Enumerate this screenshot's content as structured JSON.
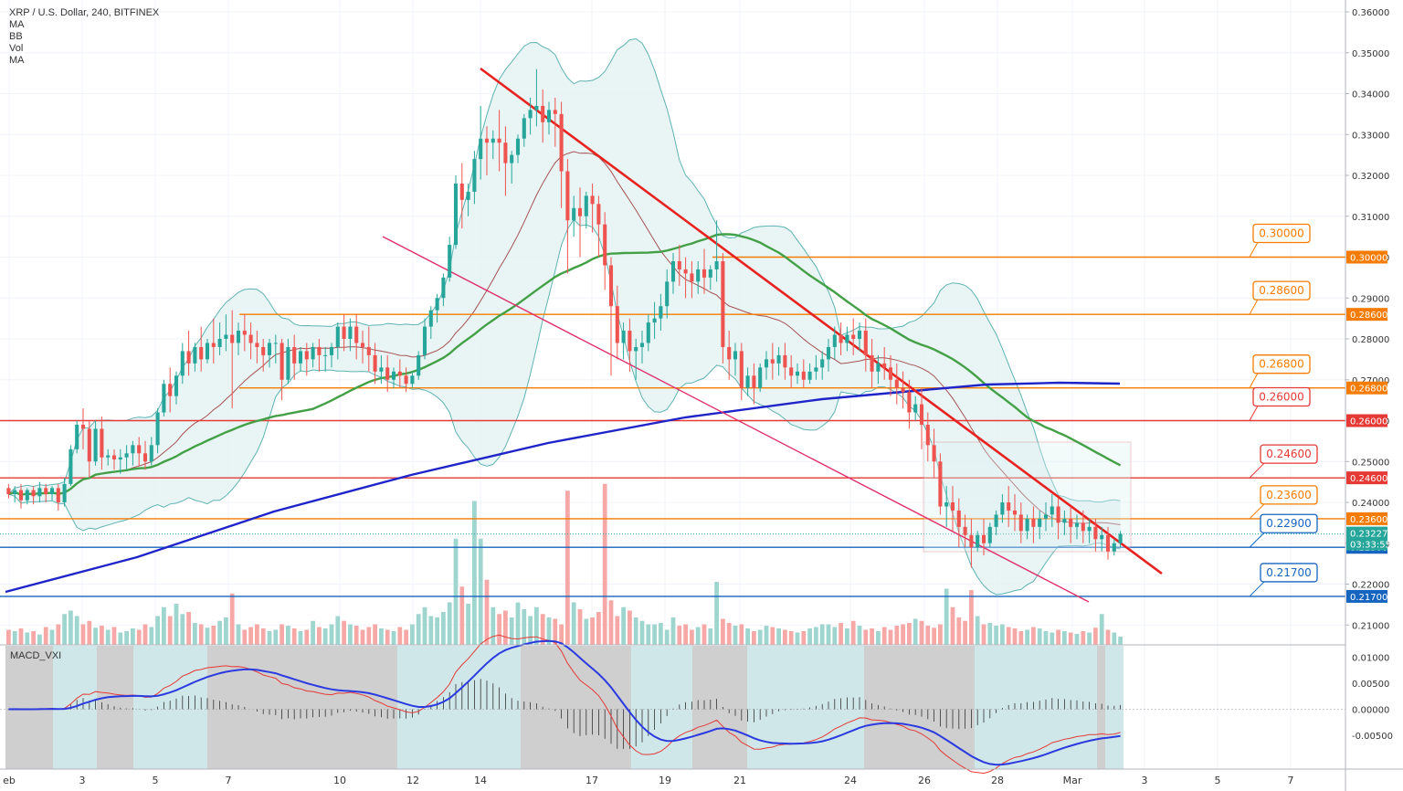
{
  "header": {
    "symbol_line": "XRP / U.S. Dollar, 240, BITFINEX",
    "indicators": [
      "MA",
      "BB",
      "Vol",
      "MA"
    ]
  },
  "macd": {
    "label": "MACD_VXI",
    "ticks": [
      "0.01000",
      "0.00500",
      "0.00000",
      "-0.00500"
    ]
  },
  "colors": {
    "up": "#26a69a",
    "down": "#ef5350",
    "orange_line": "#f57c00",
    "red_line": "#e53935",
    "blue_line": "#1565c0",
    "ma_green": "#43a047",
    "ma_blue": "#1e24c8",
    "bb": "#5fb3b3",
    "trend_red": "#e8221f",
    "trend_pink": "#e0306a"
  },
  "chart_data": {
    "type": "candlestick",
    "title": "XRP / U.S. Dollar, 240, BITFINEX",
    "ylim": [
      0.2055,
      0.3615
    ],
    "y_ticks": [
      "0.36000",
      "0.35000",
      "0.34000",
      "0.33000",
      "0.32000",
      "0.31000",
      "0.30000",
      "0.29000",
      "0.28000",
      "0.27000",
      "0.26000",
      "0.25000",
      "0.24000",
      "0.23000",
      "0.22000",
      "0.21000"
    ],
    "x_ticks": [
      "eb",
      "3",
      "5",
      "7",
      "10",
      "12",
      "14",
      "17",
      "19",
      "21",
      "24",
      "26",
      "28",
      "Mar",
      "3",
      "5",
      "7"
    ],
    "levels": [
      {
        "value": 0.3,
        "label": "0.30000",
        "style": "orange",
        "callout": "0.30000"
      },
      {
        "value": 0.286,
        "label": "0.28600",
        "style": "orange",
        "callout": "0.28600"
      },
      {
        "value": 0.268,
        "label": "0.26800",
        "style": "orange",
        "callout": "0.26800"
      },
      {
        "value": 0.26,
        "label": "0.26000",
        "style": "red",
        "callout": "0.26000"
      },
      {
        "value": 0.246,
        "label": "0.24600",
        "style": "red",
        "callout": "0.24600"
      },
      {
        "value": 0.236,
        "label": "0.23600",
        "style": "orange",
        "callout": "0.23600"
      },
      {
        "value": 0.229,
        "label": "0.22900",
        "style": "blue",
        "callout": "0.22900"
      },
      {
        "value": 0.217,
        "label": "0.21700",
        "style": "blue",
        "callout": "0.21700"
      }
    ],
    "last_price": {
      "value": 0.23227,
      "label": "0.23227",
      "countdown": "03:33:55"
    },
    "candles": [
      [
        0.2435,
        0.2445,
        0.242,
        0.241
      ],
      [
        0.242,
        0.244,
        0.243,
        0.24
      ],
      [
        0.243,
        0.2445,
        0.2405,
        0.2385
      ],
      [
        0.2405,
        0.2435,
        0.243,
        0.2395
      ],
      [
        0.243,
        0.244,
        0.2415,
        0.2395
      ],
      [
        0.2415,
        0.245,
        0.2435,
        0.24
      ],
      [
        0.2435,
        0.2445,
        0.242,
        0.24
      ],
      [
        0.242,
        0.244,
        0.2435,
        0.2405
      ],
      [
        0.2435,
        0.2445,
        0.24,
        0.238
      ],
      [
        0.24,
        0.246,
        0.2445,
        0.239
      ],
      [
        0.2445,
        0.254,
        0.253,
        0.244
      ],
      [
        0.253,
        0.26,
        0.259,
        0.252
      ],
      [
        0.259,
        0.263,
        0.258,
        0.253
      ],
      [
        0.258,
        0.26,
        0.25,
        0.246
      ],
      [
        0.25,
        0.26,
        0.258,
        0.249
      ],
      [
        0.258,
        0.261,
        0.251,
        0.248
      ],
      [
        0.251,
        0.253,
        0.2515,
        0.249
      ],
      [
        0.2515,
        0.253,
        0.2505,
        0.248
      ],
      [
        0.2505,
        0.253,
        0.251,
        0.247
      ],
      [
        0.251,
        0.254,
        0.252,
        0.248
      ],
      [
        0.252,
        0.255,
        0.254,
        0.249
      ],
      [
        0.254,
        0.256,
        0.252,
        0.249
      ],
      [
        0.252,
        0.255,
        0.25,
        0.248
      ],
      [
        0.25,
        0.256,
        0.254,
        0.249
      ],
      [
        0.254,
        0.263,
        0.262,
        0.252
      ],
      [
        0.262,
        0.27,
        0.269,
        0.261
      ],
      [
        0.269,
        0.273,
        0.266,
        0.262
      ],
      [
        0.266,
        0.272,
        0.271,
        0.264
      ],
      [
        0.271,
        0.279,
        0.277,
        0.269
      ],
      [
        0.277,
        0.282,
        0.274,
        0.271
      ],
      [
        0.274,
        0.279,
        0.278,
        0.272
      ],
      [
        0.278,
        0.283,
        0.275,
        0.272
      ],
      [
        0.275,
        0.28,
        0.279,
        0.274
      ],
      [
        0.279,
        0.285,
        0.278,
        0.274
      ],
      [
        0.278,
        0.284,
        0.28,
        0.276
      ],
      [
        0.28,
        0.286,
        0.281,
        0.277
      ],
      [
        0.281,
        0.287,
        0.279,
        0.263
      ],
      [
        0.279,
        0.284,
        0.282,
        0.276
      ],
      [
        0.282,
        0.286,
        0.281,
        0.277
      ],
      [
        0.281,
        0.284,
        0.279,
        0.275
      ],
      [
        0.279,
        0.282,
        0.278,
        0.274
      ],
      [
        0.278,
        0.28,
        0.276,
        0.272
      ],
      [
        0.276,
        0.28,
        0.279,
        0.273
      ],
      [
        0.279,
        0.281,
        0.279,
        0.274
      ],
      [
        0.279,
        0.28,
        0.27,
        0.265
      ],
      [
        0.27,
        0.28,
        0.278,
        0.269
      ],
      [
        0.278,
        0.281,
        0.274,
        0.27
      ],
      [
        0.274,
        0.278,
        0.277,
        0.272
      ],
      [
        0.277,
        0.279,
        0.275,
        0.271
      ],
      [
        0.275,
        0.279,
        0.278,
        0.273
      ],
      [
        0.278,
        0.28,
        0.276,
        0.272
      ],
      [
        0.276,
        0.278,
        0.276,
        0.272
      ],
      [
        0.276,
        0.279,
        0.278,
        0.273
      ],
      [
        0.278,
        0.284,
        0.283,
        0.275
      ],
      [
        0.283,
        0.286,
        0.28,
        0.277
      ],
      [
        0.28,
        0.285,
        0.283,
        0.277
      ],
      [
        0.283,
        0.286,
        0.279,
        0.275
      ],
      [
        0.279,
        0.282,
        0.278,
        0.274
      ],
      [
        0.278,
        0.283,
        0.276,
        0.272
      ],
      [
        0.276,
        0.279,
        0.272,
        0.269
      ],
      [
        0.272,
        0.276,
        0.273,
        0.269
      ],
      [
        0.273,
        0.276,
        0.27,
        0.267
      ],
      [
        0.27,
        0.273,
        0.272,
        0.268
      ],
      [
        0.272,
        0.275,
        0.271,
        0.268
      ],
      [
        0.271,
        0.273,
        0.269,
        0.267
      ],
      [
        0.269,
        0.272,
        0.271,
        0.268
      ],
      [
        0.271,
        0.277,
        0.276,
        0.27
      ],
      [
        0.276,
        0.285,
        0.283,
        0.275
      ],
      [
        0.283,
        0.288,
        0.287,
        0.28
      ],
      [
        0.287,
        0.291,
        0.29,
        0.284
      ],
      [
        0.29,
        0.296,
        0.295,
        0.288
      ],
      [
        0.295,
        0.305,
        0.303,
        0.294
      ],
      [
        0.303,
        0.32,
        0.318,
        0.302
      ],
      [
        0.318,
        0.323,
        0.314,
        0.307
      ],
      [
        0.314,
        0.318,
        0.316,
        0.31
      ],
      [
        0.316,
        0.326,
        0.324,
        0.313
      ],
      [
        0.324,
        0.337,
        0.329,
        0.319
      ],
      [
        0.329,
        0.332,
        0.328,
        0.32
      ],
      [
        0.328,
        0.331,
        0.329,
        0.324
      ],
      [
        0.329,
        0.336,
        0.328,
        0.321
      ],
      [
        0.328,
        0.332,
        0.323,
        0.315
      ],
      [
        0.323,
        0.326,
        0.325,
        0.318
      ],
      [
        0.325,
        0.33,
        0.329,
        0.323
      ],
      [
        0.329,
        0.335,
        0.334,
        0.327
      ],
      [
        0.334,
        0.339,
        0.336,
        0.33
      ],
      [
        0.336,
        0.346,
        0.337,
        0.332
      ],
      [
        0.337,
        0.341,
        0.333,
        0.328
      ],
      [
        0.333,
        0.338,
        0.336,
        0.33
      ],
      [
        0.336,
        0.339,
        0.335,
        0.327
      ],
      [
        0.335,
        0.338,
        0.321,
        0.312
      ],
      [
        0.321,
        0.324,
        0.309,
        0.296
      ],
      [
        0.309,
        0.315,
        0.312,
        0.305
      ],
      [
        0.312,
        0.317,
        0.31,
        0.3
      ],
      [
        0.31,
        0.316,
        0.315,
        0.307
      ],
      [
        0.315,
        0.318,
        0.313,
        0.306
      ],
      [
        0.313,
        0.315,
        0.308,
        0.3
      ],
      [
        0.308,
        0.311,
        0.298,
        0.292
      ],
      [
        0.298,
        0.3,
        0.288,
        0.271
      ],
      [
        0.288,
        0.293,
        0.279,
        0.275
      ],
      [
        0.279,
        0.284,
        0.282,
        0.275
      ],
      [
        0.282,
        0.285,
        0.277,
        0.272
      ],
      [
        0.277,
        0.28,
        0.278,
        0.27
      ],
      [
        0.278,
        0.282,
        0.279,
        0.274
      ],
      [
        0.279,
        0.286,
        0.284,
        0.277
      ],
      [
        0.284,
        0.289,
        0.285,
        0.28
      ],
      [
        0.285,
        0.291,
        0.288,
        0.282
      ],
      [
        0.288,
        0.297,
        0.294,
        0.285
      ],
      [
        0.294,
        0.301,
        0.299,
        0.291
      ],
      [
        0.299,
        0.303,
        0.297,
        0.293
      ],
      [
        0.297,
        0.3,
        0.296,
        0.29
      ],
      [
        0.296,
        0.299,
        0.294,
        0.29
      ],
      [
        0.294,
        0.299,
        0.297,
        0.291
      ],
      [
        0.297,
        0.302,
        0.295,
        0.291
      ],
      [
        0.295,
        0.298,
        0.297,
        0.292
      ],
      [
        0.297,
        0.309,
        0.299,
        0.294
      ],
      [
        0.299,
        0.301,
        0.278,
        0.274
      ],
      [
        0.278,
        0.282,
        0.275,
        0.27
      ],
      [
        0.275,
        0.279,
        0.277,
        0.271
      ],
      [
        0.277,
        0.279,
        0.268,
        0.265
      ],
      [
        0.268,
        0.273,
        0.271,
        0.266
      ],
      [
        0.271,
        0.274,
        0.268,
        0.264
      ],
      [
        0.268,
        0.274,
        0.273,
        0.267
      ],
      [
        0.273,
        0.277,
        0.275,
        0.27
      ],
      [
        0.275,
        0.279,
        0.274,
        0.27
      ],
      [
        0.274,
        0.278,
        0.276,
        0.271
      ],
      [
        0.276,
        0.279,
        0.273,
        0.27
      ],
      [
        0.273,
        0.276,
        0.271,
        0.268
      ],
      [
        0.271,
        0.274,
        0.272,
        0.269
      ],
      [
        0.272,
        0.275,
        0.27,
        0.268
      ],
      [
        0.27,
        0.274,
        0.272,
        0.269
      ],
      [
        0.272,
        0.276,
        0.273,
        0.27
      ],
      [
        0.273,
        0.277,
        0.275,
        0.27
      ],
      [
        0.275,
        0.28,
        0.278,
        0.272
      ],
      [
        0.278,
        0.283,
        0.281,
        0.275
      ],
      [
        0.281,
        0.284,
        0.279,
        0.276
      ],
      [
        0.279,
        0.283,
        0.281,
        0.277
      ],
      [
        0.281,
        0.285,
        0.28,
        0.276
      ],
      [
        0.28,
        0.284,
        0.282,
        0.277
      ],
      [
        0.282,
        0.285,
        0.276,
        0.272
      ],
      [
        0.276,
        0.28,
        0.272,
        0.268
      ],
      [
        0.272,
        0.276,
        0.274,
        0.269
      ],
      [
        0.274,
        0.278,
        0.273,
        0.27
      ],
      [
        0.273,
        0.276,
        0.27,
        0.266
      ],
      [
        0.27,
        0.274,
        0.268,
        0.264
      ],
      [
        0.268,
        0.272,
        0.267,
        0.263
      ],
      [
        0.267,
        0.27,
        0.262,
        0.258
      ],
      [
        0.262,
        0.266,
        0.264,
        0.26
      ],
      [
        0.264,
        0.268,
        0.259,
        0.253
      ],
      [
        0.259,
        0.262,
        0.254,
        0.25
      ],
      [
        0.254,
        0.258,
        0.25,
        0.246
      ],
      [
        0.25,
        0.252,
        0.239,
        0.237
      ],
      [
        0.239,
        0.244,
        0.24,
        0.234
      ],
      [
        0.24,
        0.244,
        0.238,
        0.233
      ],
      [
        0.238,
        0.241,
        0.234,
        0.229
      ],
      [
        0.234,
        0.237,
        0.232,
        0.229
      ],
      [
        0.232,
        0.236,
        0.229,
        0.224
      ],
      [
        0.229,
        0.233,
        0.232,
        0.228
      ],
      [
        0.232,
        0.236,
        0.23,
        0.227
      ],
      [
        0.23,
        0.235,
        0.234,
        0.229
      ],
      [
        0.234,
        0.238,
        0.237,
        0.232
      ],
      [
        0.237,
        0.242,
        0.24,
        0.235
      ],
      [
        0.24,
        0.244,
        0.238,
        0.234
      ],
      [
        0.238,
        0.242,
        0.237,
        0.233
      ],
      [
        0.237,
        0.24,
        0.233,
        0.23
      ],
      [
        0.233,
        0.237,
        0.236,
        0.231
      ],
      [
        0.236,
        0.239,
        0.234,
        0.23
      ],
      [
        0.234,
        0.238,
        0.236,
        0.231
      ],
      [
        0.236,
        0.24,
        0.237,
        0.233
      ],
      [
        0.237,
        0.242,
        0.239,
        0.234
      ],
      [
        0.239,
        0.241,
        0.235,
        0.231
      ],
      [
        0.235,
        0.238,
        0.236,
        0.232
      ],
      [
        0.236,
        0.239,
        0.234,
        0.23
      ],
      [
        0.234,
        0.237,
        0.235,
        0.231
      ],
      [
        0.235,
        0.238,
        0.233,
        0.23
      ],
      [
        0.233,
        0.236,
        0.234,
        0.23
      ],
      [
        0.234,
        0.236,
        0.231,
        0.228
      ],
      [
        0.231,
        0.234,
        0.232,
        0.228
      ],
      [
        0.232,
        0.234,
        0.228,
        0.226
      ],
      [
        0.228,
        0.231,
        0.23,
        0.227
      ],
      [
        0.23,
        0.233,
        0.2323,
        0.229
      ]
    ],
    "volume": [
      0.22,
      0.2,
      0.24,
      0.18,
      0.2,
      0.15,
      0.26,
      0.22,
      0.3,
      0.45,
      0.5,
      0.42,
      0.3,
      0.35,
      0.25,
      0.28,
      0.22,
      0.26,
      0.18,
      0.2,
      0.24,
      0.22,
      0.3,
      0.26,
      0.42,
      0.55,
      0.42,
      0.6,
      0.45,
      0.48,
      0.32,
      0.3,
      0.25,
      0.28,
      0.35,
      0.4,
      0.75,
      0.3,
      0.22,
      0.26,
      0.3,
      0.24,
      0.2,
      0.22,
      0.3,
      0.28,
      0.24,
      0.2,
      0.22,
      0.35,
      0.26,
      0.24,
      0.3,
      0.42,
      0.35,
      0.3,
      0.28,
      0.22,
      0.26,
      0.3,
      0.24,
      0.22,
      0.2,
      0.26,
      0.22,
      0.3,
      0.45,
      0.55,
      0.42,
      0.4,
      0.48,
      0.62,
      1.55,
      0.85,
      0.6,
      2.1,
      1.55,
      0.95,
      0.55,
      0.45,
      0.5,
      0.4,
      0.62,
      0.52,
      0.42,
      0.55,
      0.45,
      0.4,
      0.38,
      0.3,
      2.25,
      0.62,
      0.52,
      0.38,
      0.4,
      0.48,
      2.35,
      0.65,
      0.42,
      0.55,
      0.5,
      0.4,
      0.35,
      0.3,
      0.3,
      0.32,
      0.22,
      0.4,
      0.28,
      0.3,
      0.22,
      0.26,
      0.3,
      0.24,
      0.92,
      0.38,
      0.32,
      0.28,
      0.3,
      0.24,
      0.2,
      0.22,
      0.28,
      0.26,
      0.24,
      0.22,
      0.2,
      0.18,
      0.2,
      0.24,
      0.26,
      0.3,
      0.3,
      0.26,
      0.32,
      0.24,
      0.35,
      0.28,
      0.22,
      0.24,
      0.2,
      0.26,
      0.22,
      0.28,
      0.3,
      0.32,
      0.38,
      0.35,
      0.28,
      0.25,
      0.3,
      0.82,
      0.55,
      0.4,
      0.35,
      0.8,
      0.42,
      0.3,
      0.32,
      0.28,
      0.3,
      0.26,
      0.24,
      0.2,
      0.22,
      0.26,
      0.24,
      0.2,
      0.18,
      0.22,
      0.2,
      0.18,
      0.16,
      0.2,
      0.18,
      0.25,
      0.45,
      0.22,
      0.18,
      0.12
    ]
  }
}
